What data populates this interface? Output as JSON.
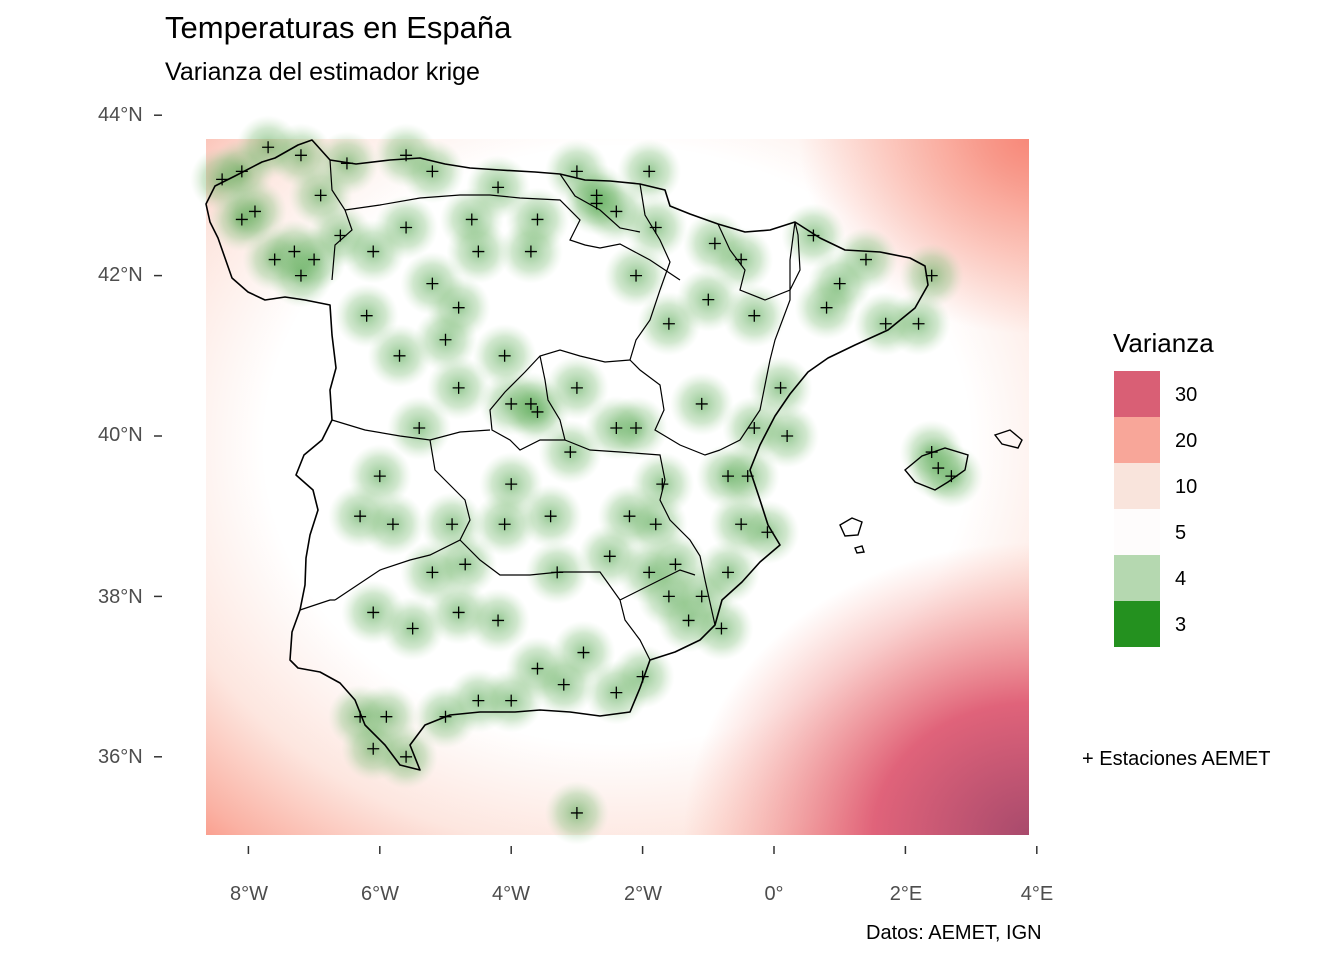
{
  "title": "Temperaturas en España",
  "subtitle": "Varianza del estimador krige",
  "caption": "Datos: AEMET, IGN",
  "y_axis": {
    "tick_labels": [
      "44°N",
      "42°N",
      "40°N",
      "38°N",
      "36°N"
    ],
    "tick_values": [
      44,
      42,
      40,
      38,
      36
    ]
  },
  "x_axis": {
    "tick_labels": [
      "8°W",
      "6°W",
      "4°W",
      "2°W",
      "0°",
      "2°E",
      "4°E"
    ],
    "tick_values": [
      -8,
      -6,
      -4,
      -2,
      0,
      2,
      4
    ]
  },
  "legend": {
    "title": "Varianza",
    "entries": [
      {
        "label": "30",
        "color": "#d95f75"
      },
      {
        "label": "20",
        "color": "#f8a699"
      },
      {
        "label": "10",
        "color": "#f9e4dc"
      },
      {
        "label": "5",
        "color": "#fefcfc"
      },
      {
        "label": "4",
        "color": "#b5d8b0"
      },
      {
        "label": "3",
        "color": "#24911f"
      }
    ]
  },
  "stations_note": "+ Estaciones AEMET",
  "map_extent": {
    "lon": [
      -8.7,
      3.9
    ],
    "lat": [
      35.0,
      43.7
    ]
  },
  "stations": [
    [
      -8.4,
      43.2
    ],
    [
      -7.9,
      42.8
    ],
    [
      -8.1,
      42.7
    ],
    [
      -7.3,
      42.3
    ],
    [
      -7.6,
      42.2
    ],
    [
      -7.0,
      42.2
    ],
    [
      -7.2,
      42.0
    ],
    [
      -6.6,
      42.5
    ],
    [
      -6.1,
      42.3
    ],
    [
      -5.6,
      42.6
    ],
    [
      -4.5,
      42.3
    ],
    [
      -5.2,
      41.9
    ],
    [
      -4.8,
      41.6
    ],
    [
      -5.7,
      41.0
    ],
    [
      -4.8,
      40.6
    ],
    [
      -4.0,
      40.4
    ],
    [
      -3.7,
      40.4
    ],
    [
      -3.6,
      40.3
    ],
    [
      -2.4,
      40.1
    ],
    [
      -3.1,
      39.8
    ],
    [
      -4.0,
      39.4
    ],
    [
      -5.4,
      40.1
    ],
    [
      -6.0,
      39.5
    ],
    [
      -6.3,
      39.0
    ],
    [
      -5.8,
      38.9
    ],
    [
      -4.9,
      38.9
    ],
    [
      -4.1,
      38.9
    ],
    [
      -3.4,
      39.0
    ],
    [
      -2.2,
      39.0
    ],
    [
      -1.8,
      38.9
    ],
    [
      -1.5,
      38.4
    ],
    [
      -1.1,
      38.0
    ],
    [
      -0.7,
      38.3
    ],
    [
      -0.5,
      38.9
    ],
    [
      -0.4,
      39.5
    ],
    [
      -0.3,
      40.1
    ],
    [
      0.1,
      40.6
    ],
    [
      -1.1,
      40.4
    ],
    [
      -2.1,
      40.1
    ],
    [
      -3.0,
      40.6
    ],
    [
      -4.1,
      41.0
    ],
    [
      -5.0,
      41.2
    ],
    [
      -6.2,
      41.5
    ],
    [
      -5.2,
      38.3
    ],
    [
      -6.1,
      37.8
    ],
    [
      -5.5,
      37.6
    ],
    [
      -4.8,
      37.8
    ],
    [
      -4.2,
      37.7
    ],
    [
      -3.6,
      37.1
    ],
    [
      -2.9,
      37.3
    ],
    [
      -2.4,
      36.8
    ],
    [
      -4.5,
      36.7
    ],
    [
      -5.0,
      36.5
    ],
    [
      -5.9,
      36.5
    ],
    [
      -6.3,
      36.5
    ],
    [
      -6.1,
      36.1
    ],
    [
      -5.6,
      36.0
    ],
    [
      -4.0,
      36.7
    ],
    [
      -3.2,
      36.9
    ],
    [
      -2.0,
      37.0
    ],
    [
      -1.3,
      37.7
    ],
    [
      -0.8,
      37.6
    ],
    [
      -1.6,
      38.0
    ],
    [
      -1.9,
      38.3
    ],
    [
      -2.5,
      38.5
    ],
    [
      -3.3,
      38.3
    ],
    [
      -4.7,
      38.4
    ],
    [
      -0.3,
      41.5
    ],
    [
      0.8,
      41.6
    ],
    [
      1.7,
      41.4
    ],
    [
      2.2,
      41.4
    ],
    [
      2.4,
      42.0
    ],
    [
      1.4,
      42.2
    ],
    [
      0.6,
      42.5
    ],
    [
      -0.9,
      42.4
    ],
    [
      -1.8,
      42.6
    ],
    [
      -2.4,
      42.8
    ],
    [
      -3.6,
      42.7
    ],
    [
      -4.2,
      43.1
    ],
    [
      -5.6,
      43.5
    ],
    [
      -6.5,
      43.4
    ],
    [
      -7.2,
      43.5
    ],
    [
      -8.1,
      43.3
    ],
    [
      -3.0,
      43.3
    ],
    [
      -1.9,
      43.3
    ],
    [
      -2.7,
      42.9
    ],
    [
      -3.7,
      42.3
    ],
    [
      -2.1,
      42.0
    ],
    [
      -1.0,
      41.7
    ],
    [
      -1.6,
      41.4
    ],
    [
      0.2,
      40.0
    ],
    [
      -0.7,
      39.5
    ],
    [
      -1.7,
      39.4
    ],
    [
      -0.1,
      38.8
    ],
    [
      2.5,
      39.6
    ],
    [
      2.7,
      39.5
    ],
    [
      2.4,
      39.8
    ],
    [
      -3.0,
      35.3
    ],
    [
      -6.9,
      43.0
    ],
    [
      -7.7,
      43.6
    ],
    [
      -5.2,
      43.3
    ],
    [
      -4.6,
      42.7
    ],
    [
      -2.7,
      43.0
    ],
    [
      -0.5,
      42.2
    ],
    [
      1.0,
      41.9
    ]
  ]
}
